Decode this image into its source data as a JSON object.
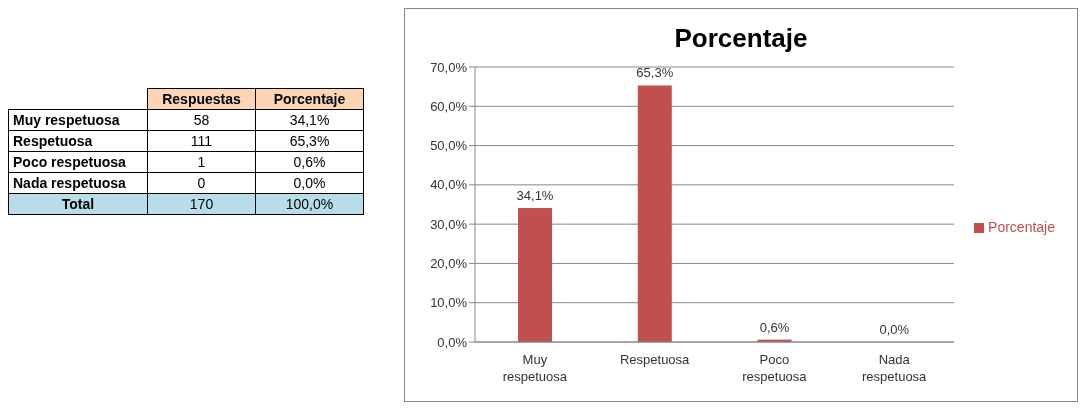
{
  "chart_data": [
    {
      "type": "other",
      "categories": [
        "Muy respetuosa",
        "Respetuosa",
        "Poco respetuosa",
        "Nada respetuosa"
      ],
      "series": [
        {
          "name": "Respuestas",
          "values": [
            58,
            111,
            1,
            0
          ]
        },
        {
          "name": "Porcentaje",
          "values": [
            34.1,
            65.3,
            0.6,
            0.0
          ],
          "value_labels": [
            "34,1%",
            "65,3%",
            "0,6%",
            "0,0%"
          ]
        }
      ],
      "data_labels": true,
      "annotations": [
        "Total",
        "170",
        "100,0%"
      ]
    },
    {
      "type": "bar",
      "title": "Porcentaje",
      "categories": [
        "Muy respetuosa",
        "Respetuosa",
        "Poco respetuosa",
        "Nada respetuosa"
      ],
      "series": [
        {
          "name": "Porcentaje",
          "color": "#c0504d",
          "values": [
            34.1,
            65.3,
            0.6,
            0.0
          ],
          "value_labels": [
            "34,1%",
            "65,3%",
            "0,6%",
            "0,0%"
          ]
        }
      ],
      "ylim": [
        0,
        70
      ],
      "yticks": [
        {
          "value": 0,
          "label": "0,0%"
        },
        {
          "value": 10,
          "label": "10,0%"
        },
        {
          "value": 20,
          "label": "20,0%"
        },
        {
          "value": 30,
          "label": "30,0%"
        },
        {
          "value": 40,
          "label": "40,0%"
        },
        {
          "value": 50,
          "label": "50,0%"
        },
        {
          "value": 60,
          "label": "60,0%"
        },
        {
          "value": 70,
          "label": "70,0%"
        }
      ],
      "grid": "y",
      "legend": "right"
    }
  ]
}
